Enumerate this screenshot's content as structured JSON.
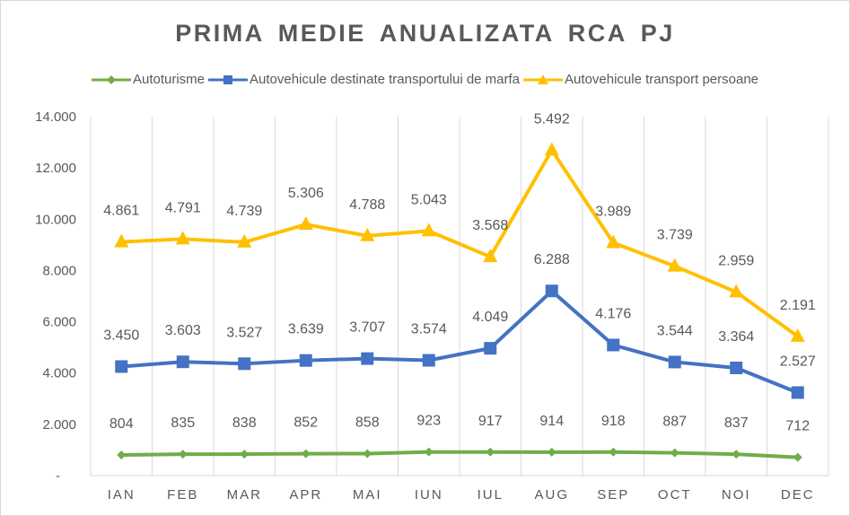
{
  "chart_data": {
    "type": "line",
    "stacked": true,
    "title": "PRIMA MEDIE ANUALIZATA RCA PJ",
    "categories": [
      "IAN",
      "FEB",
      "MAR",
      "APR",
      "MAI",
      "IUN",
      "IUL",
      "AUG",
      "SEP",
      "OCT",
      "NOI",
      "DEC"
    ],
    "y_ticks": [
      "-",
      "2.000",
      "4.000",
      "6.000",
      "8.000",
      "10.000",
      "12.000",
      "14.000"
    ],
    "ylim": [
      0,
      14000
    ],
    "legend_position": "top",
    "series": [
      {
        "name": "Autoturisme",
        "color": "#70ad47",
        "marker": "diamond",
        "values": [
          804,
          835,
          838,
          852,
          858,
          923,
          917,
          914,
          918,
          887,
          837,
          712
        ],
        "labels": [
          "804",
          "835",
          "838",
          "852",
          "858",
          "923",
          "917",
          "914",
          "918",
          "887",
          "837",
          "712"
        ]
      },
      {
        "name": "Autovehicule destinate transportului de marfa",
        "color": "#4472c4",
        "marker": "square",
        "values": [
          3450,
          3603,
          3527,
          3639,
          3707,
          3574,
          4049,
          6288,
          4176,
          3544,
          3364,
          2527
        ],
        "labels": [
          "3.450",
          "3.603",
          "3.527",
          "3.639",
          "3.707",
          "3.574",
          "4.049",
          "6.288",
          "4.176",
          "3.544",
          "3.364",
          "2.527"
        ]
      },
      {
        "name": "Autovehicule transport persoane",
        "color": "#ffc000",
        "marker": "triangle",
        "values": [
          4861,
          4791,
          4739,
          5306,
          4788,
          5043,
          3568,
          5492,
          3989,
          3739,
          2959,
          2191
        ],
        "labels": [
          "4.861",
          "4.791",
          "4.739",
          "5.306",
          "4.788",
          "5.043",
          "3.568",
          "5.492",
          "3.989",
          "3.739",
          "2.959",
          "2.191"
        ]
      }
    ]
  }
}
